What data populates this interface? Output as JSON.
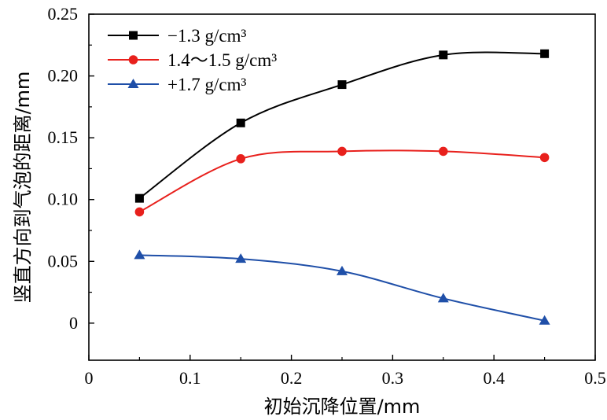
{
  "chart_data": {
    "type": "line",
    "title": "",
    "xlabel": "初始沉降位置/mm",
    "ylabel": "竖直方向到气泡的距离/mm",
    "xlim": [
      0,
      0.5
    ],
    "ylim": [
      -0.03,
      0.25
    ],
    "x_ticks": [
      "0",
      "0.1",
      "0.2",
      "0.3",
      "0.4",
      "0.5"
    ],
    "y_ticks": [
      "0",
      "0.05",
      "0.10",
      "0.15",
      "0.20",
      "0.25"
    ],
    "grid": false,
    "legend_position": "top-left",
    "x": [
      0.05,
      0.15,
      0.25,
      0.35,
      0.45
    ],
    "series": [
      {
        "name": "−1.3 g/cm³",
        "marker": "square",
        "color": "#000000",
        "values": [
          0.101,
          0.162,
          0.193,
          0.217,
          0.218
        ]
      },
      {
        "name": "1.4～1.5 g/cm³",
        "marker": "circle",
        "color": "#e8201c",
        "values": [
          0.09,
          0.133,
          0.139,
          0.139,
          0.134
        ]
      },
      {
        "name": "+1.7 g/cm³",
        "marker": "triangle",
        "color": "#1f4fa8",
        "values": [
          0.055,
          0.052,
          0.042,
          0.02,
          0.002
        ]
      }
    ]
  }
}
